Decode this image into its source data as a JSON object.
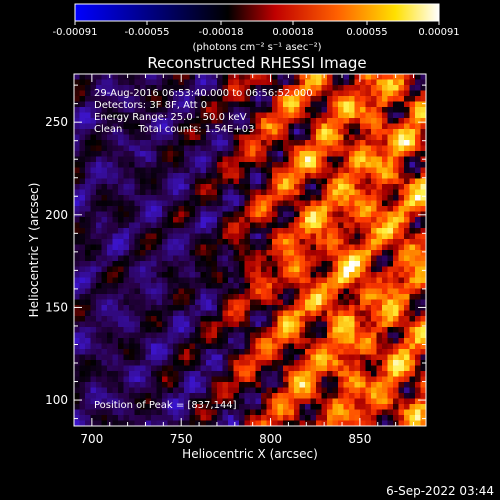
{
  "chart_data": {
    "type": "heatmap",
    "title": "Reconstructed RHESSI Image",
    "xlabel": "Heliocentric X (arcsec)",
    "ylabel": "Heliocentric Y (arcsec)",
    "xlim": [
      690,
      887
    ],
    "ylim": [
      86,
      276
    ],
    "x_ticks": [
      700,
      750,
      800,
      850
    ],
    "y_ticks": [
      100,
      150,
      200,
      250
    ],
    "colorbar": {
      "ticks": [
        "-0.00091",
        "-0.00055",
        "-0.00018",
        "0.00018",
        "0.00055",
        "0.00091"
      ],
      "unit_label": "(photons cm⁻² s⁻¹ asec⁻²)",
      "range": [
        -0.00091,
        0.00091
      ],
      "colors": [
        "#0000ff",
        "#000000",
        "#ff0000",
        "#ffa000",
        "#ffff00",
        "#ffffff"
      ]
    },
    "annotations": [
      "29-Aug-2016 06:53:40.000 to 06:56:52.000",
      "Detectors: 3F 8F, Att 0",
      "Energy Range: 25.0 - 50.0 keV",
      "Clean     Total counts: 1.54E+03"
    ],
    "peak_label": "Position of Peak = [837,144]",
    "peak": [
      837,
      144
    ],
    "pattern_note": "Positive (red/yellow) ring-like fringes dominate the right half (x > ~800); left half shows negative/near-zero purple and blue fringe structure."
  },
  "timestamp": "6-Sep-2022 03:44"
}
